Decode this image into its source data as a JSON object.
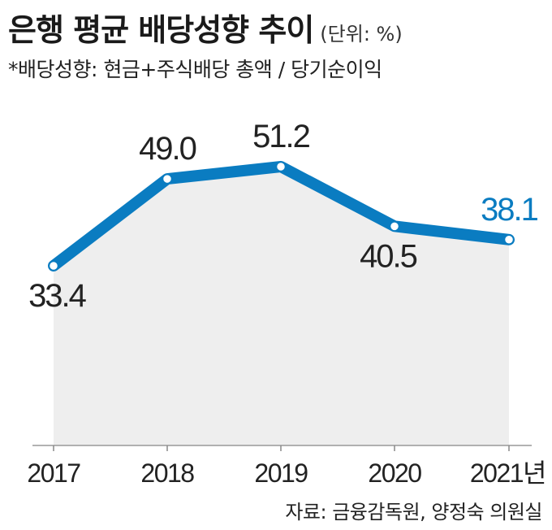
{
  "header": {
    "title": "은행 평균 배당성향 추이",
    "unit": "(단위: %)",
    "subtitle": "*배당성향: 현금+주식배당 총액 / 당기순이익"
  },
  "footer": {
    "source": "자료: 금융감독원, 양정숙 의원실"
  },
  "colors": {
    "line": "#0a7cc1",
    "area": "#eeeeee",
    "label_default": "#222222",
    "label_highlight": "#0a7cc1"
  },
  "chart_data": {
    "type": "area",
    "categories": [
      "2017",
      "2018",
      "2019",
      "2020",
      "2021년"
    ],
    "values": [
      33.4,
      49.0,
      51.2,
      40.5,
      38.1
    ],
    "data_labels": [
      "33.4",
      "49.0",
      "51.2",
      "40.5",
      "38.1"
    ],
    "highlight_index": 4,
    "title": "은행 평균 배당성향 추이",
    "xlabel": "",
    "ylabel": "",
    "grid": false,
    "legend": "none"
  }
}
